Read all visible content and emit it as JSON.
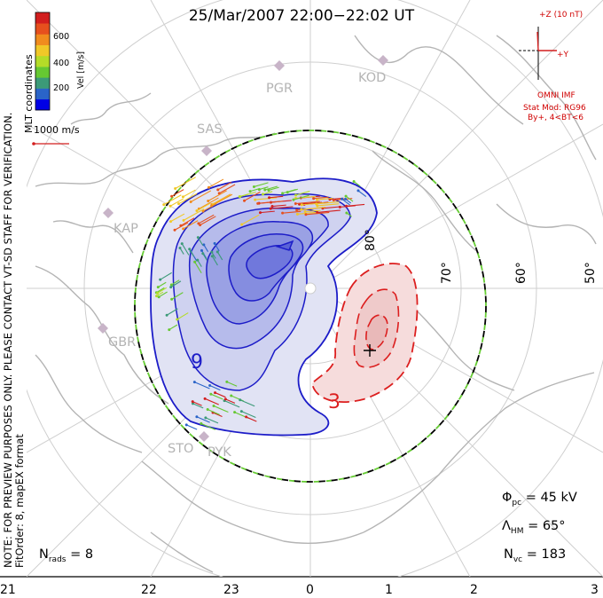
{
  "title": "25/Mar/2007  22:00−22:02  UT",
  "side_text": {
    "line1": "NOTE: FOR PREVIEW PURPOSES ONLY.  PLEASE CONTACT VT-SD STAFF FOR VERIFICATION.",
    "line2": "FitOrder: 8,  mapEX format"
  },
  "mlt_label": "MLT coordinates",
  "colorbar": {
    "label": "Vel [m/s]",
    "ticks": [
      "600",
      "400",
      "200"
    ],
    "colors": [
      "#0000e6",
      "#2a64c8",
      "#3c9a78",
      "#66c832",
      "#b4dc28",
      "#f0c828",
      "#f08c1e",
      "#e6501e",
      "#d21e1e"
    ]
  },
  "ref_vector": {
    "label": "1000 m/s"
  },
  "imf": {
    "z_label": "+Z (10 nT)",
    "y_label": "+Y",
    "omni": "OMNI IMF",
    "model": "Stat Mod: RG96",
    "cond": "By+, 4<BT<6"
  },
  "stations": [
    "PGR",
    "KOD",
    "SAS",
    "KAP",
    "GBR",
    "STO",
    "PYK"
  ],
  "lat_labels": [
    "80°",
    "70°",
    "60°",
    "50°"
  ],
  "contours": {
    "neg": "9",
    "pos": "3"
  },
  "stats": {
    "phi_sym": "Φ",
    "phi_sub": "pc",
    "phi_val": " = 45 kV",
    "lam_sym": "Λ",
    "lam_sub": "HM",
    "lam_val": " = 65°",
    "nvc_sym": "N",
    "nvc_sub": "vc",
    "nvc_val": " = 183",
    "nrads_sym": "N",
    "nrads_sub": "rads",
    "nrads_val": " = 8"
  },
  "mlt_axis": [
    "21",
    "22",
    "23",
    "0",
    "1",
    "2",
    "3"
  ],
  "colors": {
    "neg": "#1c1cc8",
    "pos": "#dc1e1e",
    "land": "#b4b4b4",
    "hmb": "#33cc33"
  }
}
